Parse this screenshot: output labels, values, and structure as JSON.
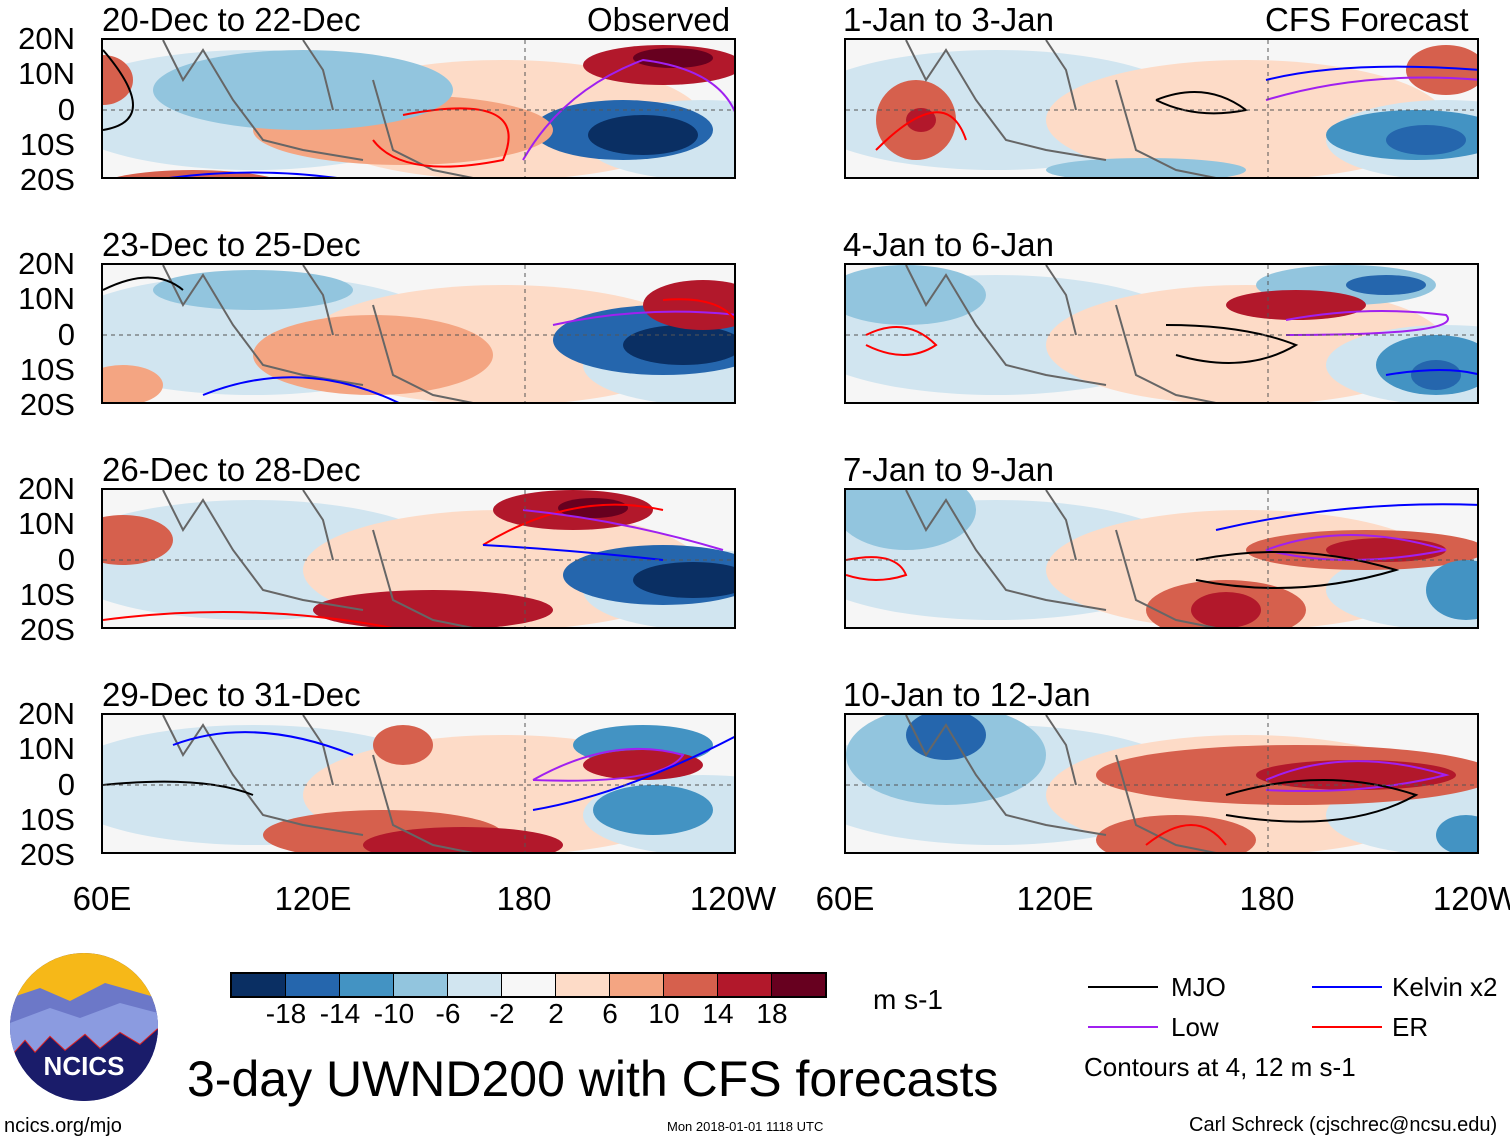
{
  "header": {
    "observed_label": "Observed",
    "forecast_label": "CFS Forecast"
  },
  "panels": [
    {
      "title": "20-Dec to 22-Dec",
      "kind": "observed"
    },
    {
      "title": "23-Dec to 25-Dec",
      "kind": "observed"
    },
    {
      "title": "26-Dec to 28-Dec",
      "kind": "observed"
    },
    {
      "title": "29-Dec to 31-Dec",
      "kind": "observed"
    },
    {
      "title": "1-Jan to 3-Jan",
      "kind": "forecast"
    },
    {
      "title": "4-Jan to 6-Jan",
      "kind": "forecast"
    },
    {
      "title": "7-Jan to 9-Jan",
      "kind": "forecast"
    },
    {
      "title": "10-Jan to 12-Jan",
      "kind": "forecast"
    }
  ],
  "axes": {
    "lat_labels": [
      "20N",
      "10N",
      "0",
      "10S",
      "20S"
    ],
    "lon_labels": [
      "60E",
      "120E",
      "180",
      "120W"
    ]
  },
  "colorbar": {
    "labels": [
      "-18",
      "-14",
      "-10",
      "-6",
      "-2",
      "2",
      "6",
      "10",
      "14",
      "18"
    ],
    "colors": [
      "#0a2f63",
      "#2566ad",
      "#4393c3",
      "#92c5de",
      "#d1e5f0",
      "#f7f7f7",
      "#fddbc7",
      "#f4a582",
      "#d6604d",
      "#b2182b",
      "#67001f"
    ],
    "units": "m s-1"
  },
  "legend": {
    "items": [
      {
        "label": "MJO",
        "color": "#000000"
      },
      {
        "label": "Kelvin x2",
        "color": "#0000ff"
      },
      {
        "label": "Low",
        "color": "#a020f0"
      },
      {
        "label": "ER",
        "color": "#ff0000"
      }
    ],
    "contours_note": "Contours at 4, 12 m s-1"
  },
  "footer": {
    "title": "3-day UWND200 with CFS forecasts",
    "logo_text": "NCICS",
    "url": "ncics.org/mjo",
    "timestamp": "Mon 2018-01-01 1118 UTC",
    "credit": "Carl Schreck (cjschrec@ncsu.edu)"
  }
}
